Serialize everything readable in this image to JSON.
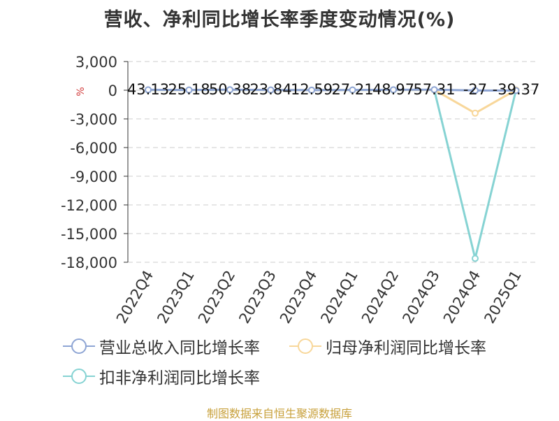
{
  "chart_data": {
    "type": "line",
    "title": "营收、净利同比增长率季度变动情况(%)",
    "ylabel": "%",
    "categories": [
      "2022Q4",
      "2023Q1",
      "2023Q2",
      "2023Q3",
      "2023Q4",
      "2024Q1",
      "2024Q2",
      "2024Q3",
      "2024Q4",
      "2025Q1"
    ],
    "ylim": [
      -18000,
      3000
    ],
    "yticks": [
      3000,
      0,
      -3000,
      -6000,
      -9000,
      -12000,
      -15000,
      -18000
    ],
    "ytick_labels": [
      "3,000",
      "0",
      "-3,000",
      "-6,000",
      "-9,000",
      "-12,000",
      "-15,000",
      "-18,000"
    ],
    "grid": true,
    "legend_position": "bottom-left",
    "series": [
      {
        "name": "营业总收入同比增长率",
        "color": "#8ea5d4",
        "values": [
          43.13,
          25.18,
          50.38,
          23.84,
          12.59,
          27.21,
          48.97,
          57.31,
          -27,
          -39.37
        ],
        "labels": [
          "43.13",
          "25.18",
          "50.38",
          "23.84",
          "12.59",
          "27.21",
          "48.97",
          "57.31",
          "-27",
          "-39.37"
        ]
      },
      {
        "name": "归母净利润同比增长率",
        "color": "#f8d79a",
        "values": [
          30,
          20,
          40,
          20,
          10,
          20,
          30,
          40,
          -2400,
          30
        ]
      },
      {
        "name": "扣非净利润同比增长率",
        "color": "#86d3d3",
        "values": [
          20,
          15,
          30,
          15,
          5,
          15,
          25,
          30,
          -17600,
          20
        ]
      }
    ]
  },
  "footer": {
    "source": "制图数据来自恒生聚源数据库"
  }
}
